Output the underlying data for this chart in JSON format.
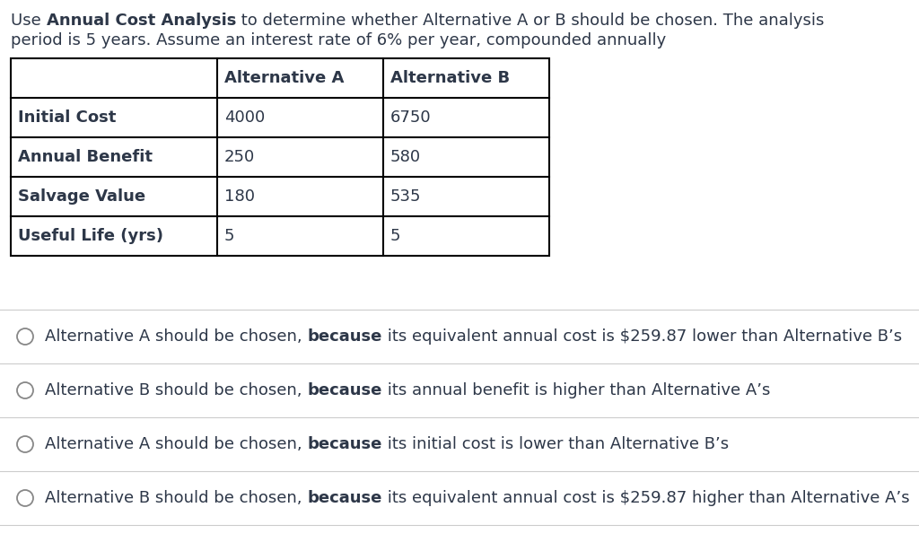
{
  "line1_parts": [
    [
      "Use ",
      false
    ],
    [
      "Annual Cost Analysis",
      true
    ],
    [
      " to determine whether Alternative A or B should be chosen. The analysis",
      false
    ]
  ],
  "line2": "period is 5 years. Assume an interest rate of 6% per year, compounded annually",
  "table_headers": [
    "",
    "Alternative A",
    "Alternative B"
  ],
  "table_rows": [
    [
      "Initial Cost",
      "4000",
      "6750"
    ],
    [
      "Annual Benefit",
      "250",
      "580"
    ],
    [
      "Salvage Value",
      "180",
      "535"
    ],
    [
      "Useful Life (yrs)",
      "5",
      "5"
    ]
  ],
  "options": [
    [
      "Alternative A should be chosen, ",
      "because",
      " its equivalent annual cost is $259.87 lower than Alternative B’s"
    ],
    [
      "Alternative B should be chosen, ",
      "because",
      " its annual benefit is higher than Alternative A’s"
    ],
    [
      "Alternative A should be chosen, ",
      "because",
      " its initial cost is lower than Alternative B’s"
    ],
    [
      "Alternative B should be chosen, ",
      "because",
      " its equivalent annual cost is $259.87 higher than Alternative A’s"
    ]
  ],
  "bg_color": "#ffffff",
  "text_color": "#2d3748",
  "table_border_color": "#000000",
  "option_line_color": "#cccccc",
  "circle_color": "#888888",
  "font_size": 13.0
}
